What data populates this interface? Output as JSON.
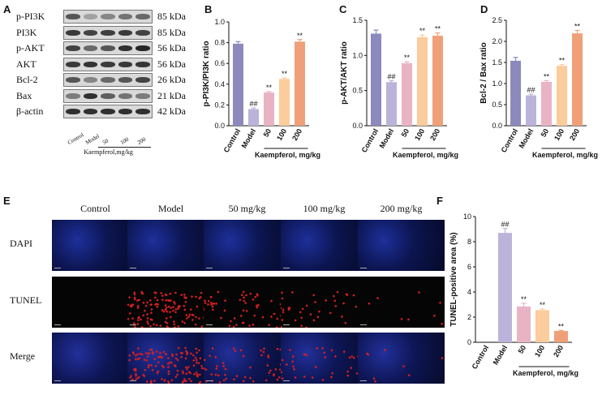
{
  "panels": {
    "A": "A",
    "B": "B",
    "C": "C",
    "D": "D",
    "E": "E",
    "F": "F"
  },
  "western_blot": {
    "proteins": [
      {
        "name": "p-PI3K",
        "kda": "85 kDa",
        "intensity": [
          0.6,
          0.2,
          0.35,
          0.45,
          0.5
        ]
      },
      {
        "name": "PI3K",
        "kda": "85 kDa",
        "intensity": [
          0.75,
          0.7,
          0.72,
          0.74,
          0.7
        ]
      },
      {
        "name": "p-AKT",
        "kda": "56 kDa",
        "intensity": [
          0.7,
          0.5,
          0.6,
          0.8,
          0.85
        ]
      },
      {
        "name": "AKT",
        "kda": "56 kDa",
        "intensity": [
          0.75,
          0.78,
          0.75,
          0.76,
          0.77
        ]
      },
      {
        "name": "Bcl-2",
        "kda": "26 kDa",
        "intensity": [
          0.6,
          0.35,
          0.5,
          0.6,
          0.7
        ]
      },
      {
        "name": "Bax",
        "kda": "21 kDa",
        "intensity": [
          0.4,
          0.8,
          0.55,
          0.45,
          0.4
        ]
      },
      {
        "name": "β-actin",
        "kda": "42 kDa",
        "intensity": [
          0.8,
          0.8,
          0.8,
          0.8,
          0.8
        ]
      }
    ],
    "lanes": [
      "Control",
      "Model",
      "50",
      "100",
      "200"
    ],
    "axis_label": "Kaempferol,mg/kg"
  },
  "chart_data": [
    {
      "id": "B",
      "type": "bar",
      "categories": [
        "Control",
        "Model",
        "50",
        "100",
        "200"
      ],
      "values": [
        0.79,
        0.16,
        0.32,
        0.45,
        0.81
      ],
      "errors": [
        0.02,
        0.01,
        0.01,
        0.01,
        0.02
      ],
      "annotations": [
        "",
        "##",
        "**",
        "**",
        "**"
      ],
      "colors": [
        "#8c89bd",
        "#bbb3d9",
        "#e8b4c4",
        "#fbcc9c",
        "#f0a079"
      ],
      "ylabel": "p-PI3K/PI3K ratio",
      "xlabel": "Kaempferol, mg/kg",
      "ylim": [
        0,
        1.0
      ],
      "yticks": [
        "0.0",
        "0.2",
        "0.4",
        "0.6",
        "0.8",
        "1.0"
      ]
    },
    {
      "id": "C",
      "type": "bar",
      "categories": [
        "Control",
        "Model",
        "50",
        "100",
        "200"
      ],
      "values": [
        1.31,
        0.62,
        0.89,
        1.26,
        1.28
      ],
      "errors": [
        0.05,
        0.02,
        0.02,
        0.03,
        0.04
      ],
      "annotations": [
        "",
        "##",
        "**",
        "**",
        "**"
      ],
      "colors": [
        "#8c89bd",
        "#bbb3d9",
        "#e8b4c4",
        "#fbcc9c",
        "#f0a079"
      ],
      "ylabel": "p-AKT/AKT ratio",
      "xlabel": "Kaempferol, mg/kg",
      "ylim": [
        0,
        1.5
      ],
      "yticks": [
        "0.0",
        "0.5",
        "1.0",
        "1.5"
      ]
    },
    {
      "id": "D",
      "type": "bar",
      "categories": [
        "Control",
        "Model",
        "50",
        "100",
        "200"
      ],
      "values": [
        1.54,
        0.72,
        1.04,
        1.42,
        2.19
      ],
      "errors": [
        0.08,
        0.03,
        0.03,
        0.03,
        0.07
      ],
      "annotations": [
        "",
        "##",
        "**",
        "**",
        "**"
      ],
      "colors": [
        "#8c89bd",
        "#bbb3d9",
        "#e8b4c4",
        "#fbcc9c",
        "#f0a079"
      ],
      "ylabel": "Bcl-2 / Bax ratio",
      "xlabel": "Kaempferol, mg/kg",
      "ylim": [
        0,
        2.5
      ],
      "yticks": [
        "0.0",
        "0.5",
        "1.0",
        "1.5",
        "2.0",
        "2.5"
      ]
    },
    {
      "id": "F",
      "type": "bar",
      "categories": [
        "Control",
        "Model",
        "50",
        "100",
        "200"
      ],
      "values": [
        0,
        8.7,
        2.85,
        2.55,
        0.9
      ],
      "errors": [
        0,
        0.35,
        0.25,
        0.1,
        0.05
      ],
      "annotations": [
        "",
        "##",
        "**",
        "**",
        "**"
      ],
      "colors": [
        "#8c89bd",
        "#bbb3d9",
        "#e8b4c4",
        "#fbcc9c",
        "#f0a079"
      ],
      "ylabel": "TUNEL-positive area (%)",
      "xlabel": "Kaempferol, mg/kg",
      "ylim": [
        0,
        10
      ],
      "yticks": [
        "0",
        "2",
        "4",
        "6",
        "8",
        "10"
      ]
    }
  ],
  "tunel": {
    "columns": [
      "Control",
      "Model",
      "50 mg/kg",
      "100 mg/kg",
      "200 mg/kg"
    ],
    "rows": [
      "DAPI",
      "TUNEL",
      "Merge"
    ],
    "red_density": [
      0.0,
      0.9,
      0.35,
      0.25,
      0.05
    ]
  },
  "colors": {
    "dapi": "#1a2a8c",
    "tunel": "#d61f1f"
  }
}
